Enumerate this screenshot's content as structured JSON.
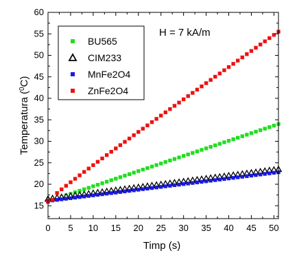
{
  "chart_data": {
    "type": "scatter",
    "title": "",
    "xlabel": "Timp (s)",
    "ylabel_main": "Temperatura (",
    "ylabel_sup": "0",
    "ylabel_end": "C)",
    "annotation": "H = 7 kA/m",
    "xlim": [
      0,
      51
    ],
    "ylim": [
      12,
      60
    ],
    "xticks": [
      0,
      5,
      10,
      15,
      20,
      25,
      30,
      35,
      40,
      45,
      50
    ],
    "yticks": [
      15,
      20,
      25,
      30,
      35,
      40,
      45,
      50,
      55,
      60
    ],
    "legend_position": "top-left",
    "series": [
      {
        "name": "BU565",
        "color": "#22dd22",
        "marker": "square",
        "start": 16.0,
        "end": 34.0
      },
      {
        "name": "CIM233",
        "color": "#000000",
        "marker": "triangle",
        "start": 16.6,
        "end": 23.5
      },
      {
        "name": "MnFe2O4",
        "color": "#1a1ae6",
        "marker": "square",
        "start": 16.1,
        "end": 22.8
      },
      {
        "name": "ZnFe2O4",
        "color": "#ee1111",
        "marker": "square",
        "start": 15.9,
        "end": 55.5
      }
    ]
  }
}
